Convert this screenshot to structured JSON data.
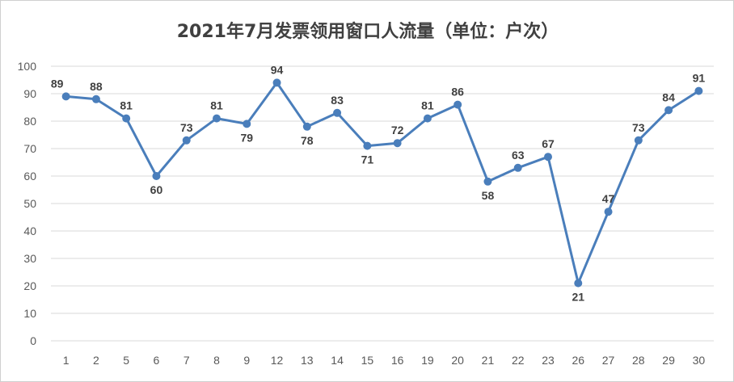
{
  "chart_data": {
    "type": "line",
    "title": "2021年7月发票领用窗口人流量（单位：户次）",
    "xlabel": "",
    "ylabel": "",
    "categories": [
      "1",
      "2",
      "5",
      "6",
      "7",
      "8",
      "9",
      "12",
      "13",
      "14",
      "15",
      "16",
      "19",
      "20",
      "21",
      "22",
      "23",
      "26",
      "27",
      "28",
      "29",
      "30"
    ],
    "series": [
      {
        "values": [
          89,
          88,
          81,
          60,
          73,
          81,
          79,
          94,
          78,
          83,
          71,
          72,
          81,
          86,
          58,
          63,
          67,
          21,
          47,
          73,
          84,
          91
        ]
      }
    ],
    "ylim": [
      0,
      100
    ],
    "yticks": [
      0,
      10,
      20,
      30,
      40,
      50,
      60,
      70,
      80,
      90,
      100
    ],
    "grid": true,
    "data_labels": true,
    "line_color": "#4a7ebb"
  }
}
